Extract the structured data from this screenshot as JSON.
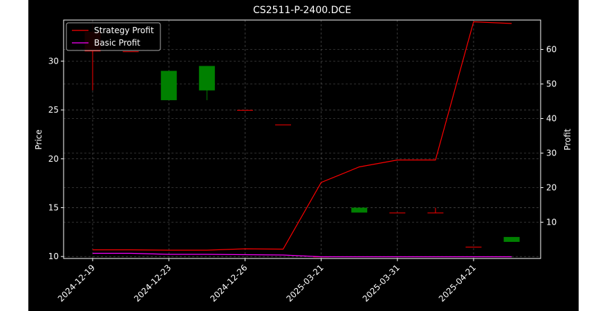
{
  "chart_data": {
    "type": "candlestick",
    "title": "CS2511-P-2400.DCE",
    "ylabel_left": "Price",
    "ylabel_right": "Profit",
    "x_tick_labels": [
      "2024-12-19",
      "2024-12-23",
      "2024-12-26",
      "2025-03-21",
      "2025-03-31",
      "2025-04-21"
    ],
    "left_axis": {
      "ylim": [
        9.8,
        34.2
      ],
      "ticks": [
        10,
        15,
        20,
        25,
        30
      ]
    },
    "right_axis": {
      "ylim": [
        -0.5,
        68.5
      ],
      "ticks": [
        10,
        20,
        30,
        40,
        50,
        60
      ]
    },
    "grid": true,
    "legend_position": "upper-left",
    "colors": {
      "up": "#00ff00",
      "down": "#ff0000",
      "strategy_profit": "#ff0000",
      "basic_profit": "#ff00ff"
    },
    "candles": [
      {
        "open": 33.0,
        "high": 33.8,
        "low": 27.0,
        "close": 31.0
      },
      {
        "open": 31.0,
        "high": 31.0,
        "low": 31.0,
        "close": 31.0
      },
      {
        "open": 26.0,
        "high": 29.0,
        "low": 26.0,
        "close": 29.0
      },
      {
        "open": 27.0,
        "high": 29.5,
        "low": 26.0,
        "close": 29.5
      },
      {
        "open": 25.0,
        "high": 25.0,
        "low": 25.0,
        "close": 25.0
      },
      {
        "open": 23.5,
        "high": 23.5,
        "low": 23.5,
        "close": 23.5
      },
      {
        "open": 10.0,
        "high": 10.0,
        "low": 10.0,
        "close": 10.0
      },
      {
        "open": 14.5,
        "high": 15.0,
        "low": 14.5,
        "close": 15.0
      },
      {
        "open": 14.5,
        "high": 14.5,
        "low": 14.5,
        "close": 14.5
      },
      {
        "open": 14.5,
        "high": 15.0,
        "low": 14.5,
        "close": 14.5
      },
      {
        "open": 11.0,
        "high": 11.0,
        "low": 11.0,
        "close": 11.0
      },
      {
        "open": 11.5,
        "high": 12.0,
        "low": 11.5,
        "close": 12.0
      }
    ],
    "series": [
      {
        "name": "Strategy Profit",
        "axis": "right",
        "values": [
          2.0,
          2.0,
          1.9,
          1.9,
          2.3,
          2.2,
          21.5,
          26.0,
          28.0,
          28.0,
          68.0,
          67.5
        ]
      },
      {
        "name": "Basic Profit",
        "axis": "right",
        "values": [
          1.0,
          1.0,
          0.7,
          0.7,
          0.6,
          0.5,
          0.0,
          0.0,
          0.0,
          0.0,
          0.0,
          0.0
        ]
      }
    ]
  }
}
